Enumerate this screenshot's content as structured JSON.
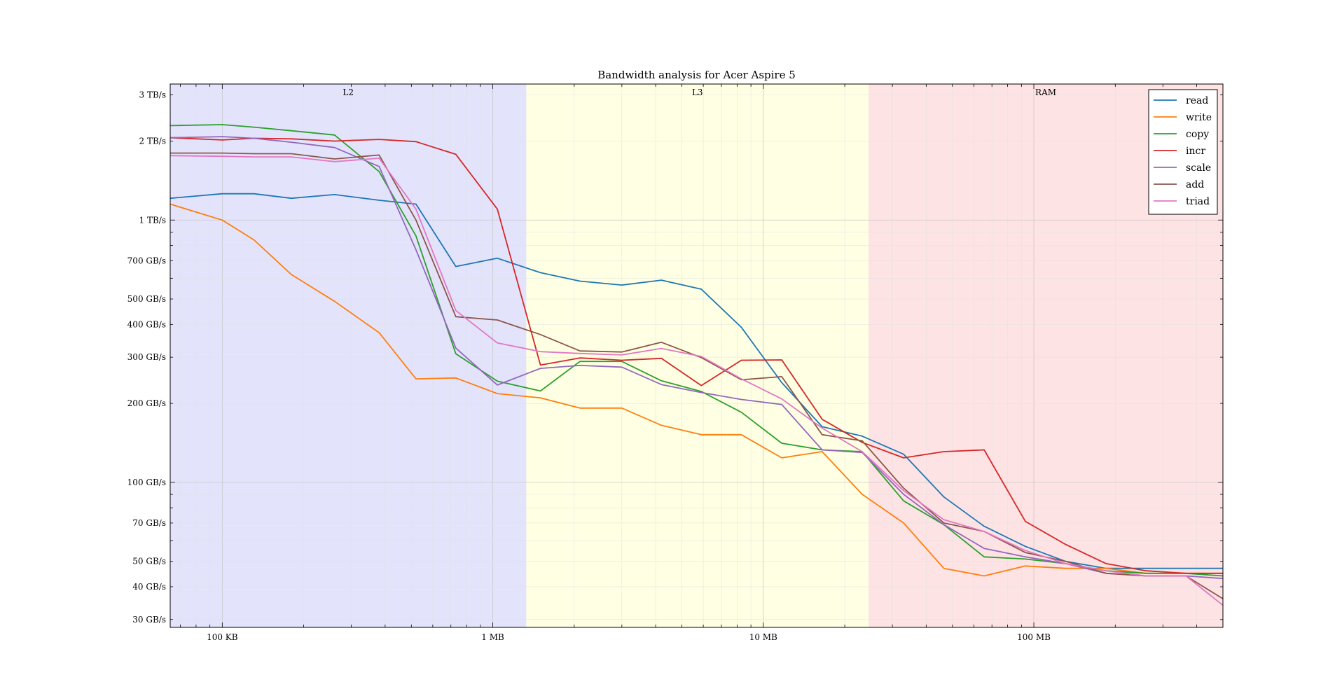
{
  "chart_data": {
    "type": "line",
    "title": "Bandwidth analysis for Acer Aspire 5",
    "xlabel": "",
    "ylabel": "",
    "x_scale": "log",
    "y_scale": "log",
    "xlim": [
      0.0642,
      500
    ],
    "ylim": [
      28,
      3300000.0
    ],
    "x_unit": "MB",
    "y_unit": "GB/s",
    "x_ticks": [
      {
        "value": 0.1,
        "label": "100 KB"
      },
      {
        "value": 1,
        "label": "1 MB"
      },
      {
        "value": 10,
        "label": "10 MB"
      },
      {
        "value": 100,
        "label": "100 MB"
      }
    ],
    "y_ticks": [
      {
        "value": 3000000,
        "label": "3 TB/s"
      },
      {
        "value": 2000000,
        "label": "2 TB/s"
      },
      {
        "value": 1000000,
        "label": "1 TB/s"
      },
      {
        "value": 700,
        "label": "700 GB/s"
      },
      {
        "value": 500,
        "label": "500 GB/s"
      },
      {
        "value": 400,
        "label": "400 GB/s"
      },
      {
        "value": 300,
        "label": "300 GB/s"
      },
      {
        "value": 200,
        "label": "200 GB/s"
      },
      {
        "value": 100,
        "label": "100 GB/s"
      },
      {
        "value": 70,
        "label": "70 GB/s"
      },
      {
        "value": 50,
        "label": "50 GB/s"
      },
      {
        "value": 40,
        "label": "40 GB/s"
      },
      {
        "value": 30,
        "label": "30 GB/s"
      }
    ],
    "regions": [
      {
        "label": "L2",
        "x_start": 0.0642,
        "x_end": 1.33,
        "color": "#e3e3fc"
      },
      {
        "label": "L3",
        "x_start": 1.33,
        "x_end": 24.5,
        "color": "#feffe3"
      },
      {
        "label": "RAM",
        "x_start": 24.5,
        "x_end": 500,
        "color": "#fde3e4"
      }
    ],
    "grid": true,
    "legend_position": "top-right",
    "x": [
      0.0642,
      0.1,
      0.131,
      0.18,
      0.26,
      0.38,
      0.52,
      0.73,
      1.04,
      1.5,
      2.1,
      3.0,
      4.2,
      5.9,
      8.3,
      11.7,
      16.5,
      23.2,
      33,
      46.5,
      65.5,
      93,
      131,
      185,
      260,
      365,
      500
    ],
    "series": [
      {
        "name": "read",
        "color": "#1f77b4",
        "values": [
          1210,
          1260,
          1260,
          1210,
          1250,
          1190,
          1150,
          665,
          715,
          630,
          585,
          565,
          590,
          545,
          390,
          240,
          163,
          150,
          128,
          88,
          68,
          57,
          50,
          47,
          47,
          47,
          47
        ]
      },
      {
        "name": "write",
        "color": "#ff7f0e",
        "values": [
          1150,
          1000,
          840,
          620,
          490,
          372,
          248,
          250,
          218,
          210,
          192,
          192,
          165,
          152,
          152,
          124,
          131,
          90,
          70,
          47,
          44,
          48,
          47,
          47,
          45,
          45,
          45
        ]
      },
      {
        "name": "copy",
        "color": "#2ca02c",
        "values": [
          2290,
          2310,
          2260,
          2190,
          2110,
          1530,
          870,
          309,
          243,
          223,
          289,
          289,
          244,
          222,
          185,
          141,
          133,
          131,
          85,
          69,
          52,
          51,
          49,
          46,
          45,
          45,
          44
        ]
      },
      {
        "name": "incr",
        "color": "#d62728",
        "values": [
          2060,
          2020,
          2050,
          2040,
          2000,
          2030,
          1990,
          1780,
          1100,
          280,
          298,
          292,
          297,
          234,
          292,
          293,
          174,
          142,
          124,
          131,
          133,
          71,
          58,
          49,
          46,
          45,
          45
        ]
      },
      {
        "name": "scale",
        "color": "#9467bd",
        "values": [
          2060,
          2080,
          2050,
          1980,
          1890,
          1600,
          770,
          325,
          235,
          272,
          279,
          275,
          236,
          220,
          207,
          198,
          133,
          130,
          90,
          69,
          56,
          52,
          49,
          45,
          44,
          44,
          43
        ]
      },
      {
        "name": "add",
        "color": "#8c564b",
        "values": [
          1800,
          1800,
          1790,
          1790,
          1710,
          1770,
          1000,
          428,
          416,
          366,
          317,
          314,
          342,
          299,
          246,
          253,
          152,
          144,
          95,
          70,
          65,
          54,
          50,
          45,
          44,
          44,
          36
        ]
      },
      {
        "name": "triad",
        "color": "#e377c2",
        "values": [
          1760,
          1750,
          1740,
          1740,
          1670,
          1720,
          1100,
          452,
          340,
          315,
          310,
          306,
          324,
          302,
          248,
          208,
          161,
          131,
          93,
          72,
          65,
          55,
          49,
          46,
          44,
          44,
          34
        ]
      }
    ]
  }
}
